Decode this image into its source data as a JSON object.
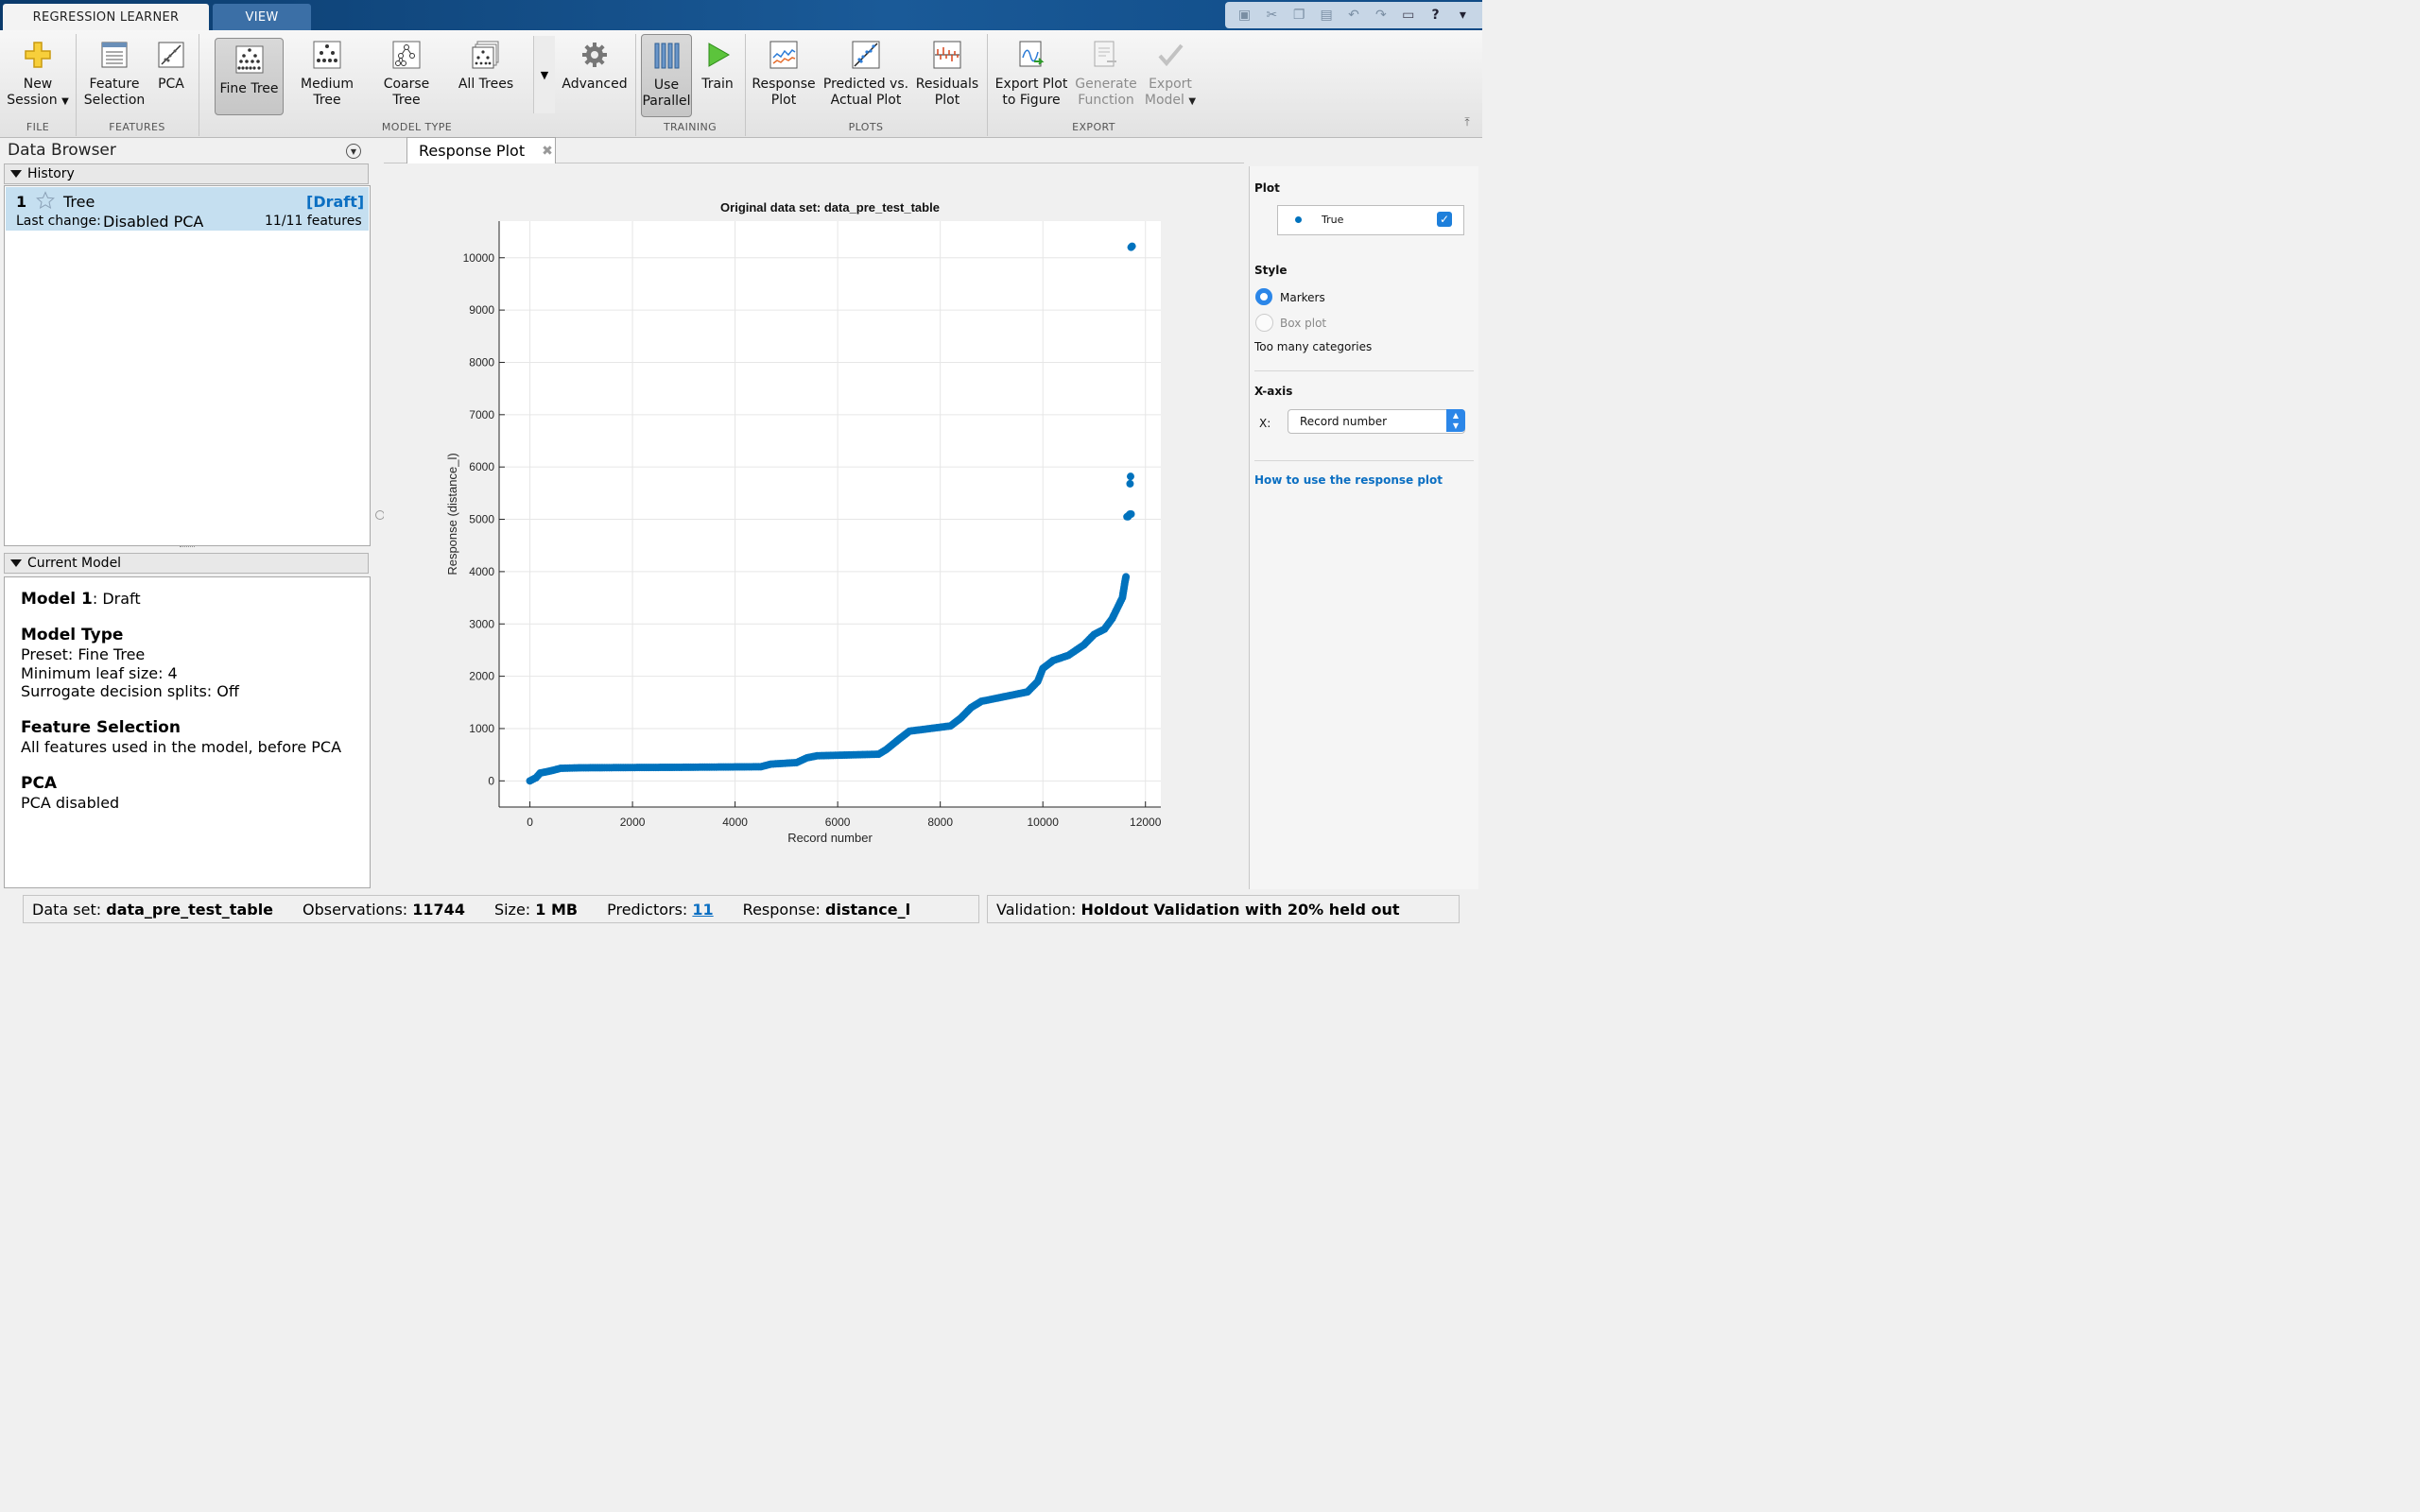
{
  "tabs": {
    "learner": "REGRESSION LEARNER",
    "view": "VIEW"
  },
  "ribbon": {
    "new_session": [
      "New",
      "Session"
    ],
    "feature_selection": [
      "Feature",
      "Selection"
    ],
    "pca": "PCA",
    "fine_tree": "Fine Tree",
    "medium_tree": [
      "Medium",
      "Tree"
    ],
    "coarse_tree": [
      "Coarse",
      "Tree"
    ],
    "all_trees": "All Trees",
    "advanced": "Advanced",
    "use_parallel": [
      "Use",
      "Parallel"
    ],
    "train": "Train",
    "response_plot": [
      "Response",
      "Plot"
    ],
    "pred_vs_actual": [
      "Predicted vs.",
      "Actual Plot"
    ],
    "residuals_plot": [
      "Residuals",
      "Plot"
    ],
    "export_plot": [
      "Export Plot",
      "to Figure"
    ],
    "generate_function": [
      "Generate",
      "Function"
    ],
    "export_model": [
      "Export",
      "Model"
    ],
    "groups": {
      "file": "FILE",
      "features": "FEATURES",
      "model_type": "MODEL TYPE",
      "training": "TRAINING",
      "plots": "PLOTS",
      "export": "EXPORT"
    }
  },
  "data_browser": {
    "title": "Data Browser",
    "history_label": "History",
    "model": {
      "number": "1",
      "type": "Tree",
      "status": "[Draft]",
      "last_change_label": "Last change:",
      "last_change": "Disabled PCA",
      "features": "11/11 features"
    },
    "current_model_label": "Current Model",
    "current_model": {
      "model_label": "Model 1",
      "model_status": ": Draft",
      "type_head": "Model Type",
      "preset": "Preset: Fine Tree",
      "leaf": "Minimum leaf size: 4",
      "surrogate": "Surrogate decision splits: Off",
      "fs_head": "Feature Selection",
      "fs_text": "All features used in the model, before PCA",
      "pca_head": "PCA",
      "pca_text": "PCA disabled"
    }
  },
  "doc_tab": {
    "label": "Response Plot"
  },
  "right_panel": {
    "plot_head": "Plot",
    "legend_true": "True",
    "style_head": "Style",
    "markers": "Markers",
    "boxplot": "Box plot",
    "too_many": "Too many categories",
    "xaxis_head": "X-axis",
    "x_label": "X:",
    "x_select": "Record number",
    "help_link": "How to use the response plot"
  },
  "status": {
    "dataset_label": "Data set:",
    "dataset": "data_pre_test_table",
    "obs_label": "Observations:",
    "obs": "11744",
    "size_label": "Size:",
    "size": "1 MB",
    "pred_label": "Predictors:",
    "pred": "11",
    "resp_label": "Response:",
    "resp": "distance_l",
    "val_label": "Validation:",
    "val": "Holdout Validation with 20% held out"
  },
  "colors": {
    "accent": "#0072bd",
    "selection": "#c5dff0",
    "link": "#0b6fc2"
  },
  "chart_data": {
    "type": "scatter",
    "title": "Original data set: data_pre_test_table",
    "xlabel": "Record number",
    "ylabel": "Response (distance_l)",
    "xlim": [
      -600,
      12300
    ],
    "ylim": [
      -500,
      10700
    ],
    "xticks": [
      0,
      2000,
      4000,
      6000,
      8000,
      10000,
      12000
    ],
    "yticks": [
      0,
      1000,
      2000,
      3000,
      4000,
      5000,
      6000,
      7000,
      8000,
      9000,
      10000
    ],
    "grid": true,
    "series": [
      {
        "name": "True",
        "color": "#0072bd",
        "curve": [
          [
            0,
            0
          ],
          [
            120,
            60
          ],
          [
            200,
            150
          ],
          [
            400,
            190
          ],
          [
            600,
            240
          ],
          [
            1000,
            250
          ],
          [
            3000,
            260
          ],
          [
            4500,
            270
          ],
          [
            4700,
            320
          ],
          [
            5200,
            350
          ],
          [
            5400,
            440
          ],
          [
            5600,
            480
          ],
          [
            6000,
            490
          ],
          [
            6800,
            510
          ],
          [
            6950,
            600
          ],
          [
            7200,
            800
          ],
          [
            7400,
            950
          ],
          [
            7800,
            1000
          ],
          [
            8200,
            1050
          ],
          [
            8400,
            1200
          ],
          [
            8600,
            1400
          ],
          [
            8800,
            1520
          ],
          [
            9200,
            1600
          ],
          [
            9700,
            1700
          ],
          [
            9900,
            1900
          ],
          [
            10000,
            2150
          ],
          [
            10200,
            2300
          ],
          [
            10500,
            2400
          ],
          [
            10800,
            2600
          ],
          [
            11000,
            2800
          ],
          [
            11200,
            2900
          ],
          [
            11350,
            3100
          ],
          [
            11450,
            3300
          ],
          [
            11550,
            3500
          ],
          [
            11600,
            3800
          ],
          [
            11620,
            3900
          ]
        ],
        "outliers": [
          [
            11640,
            5050
          ],
          [
            11660,
            5050
          ],
          [
            11680,
            5080
          ],
          [
            11700,
            5100
          ],
          [
            11720,
            5100
          ],
          [
            11700,
            5680
          ],
          [
            11710,
            5820
          ],
          [
            11720,
            10200
          ],
          [
            11740,
            10220
          ]
        ]
      }
    ]
  }
}
